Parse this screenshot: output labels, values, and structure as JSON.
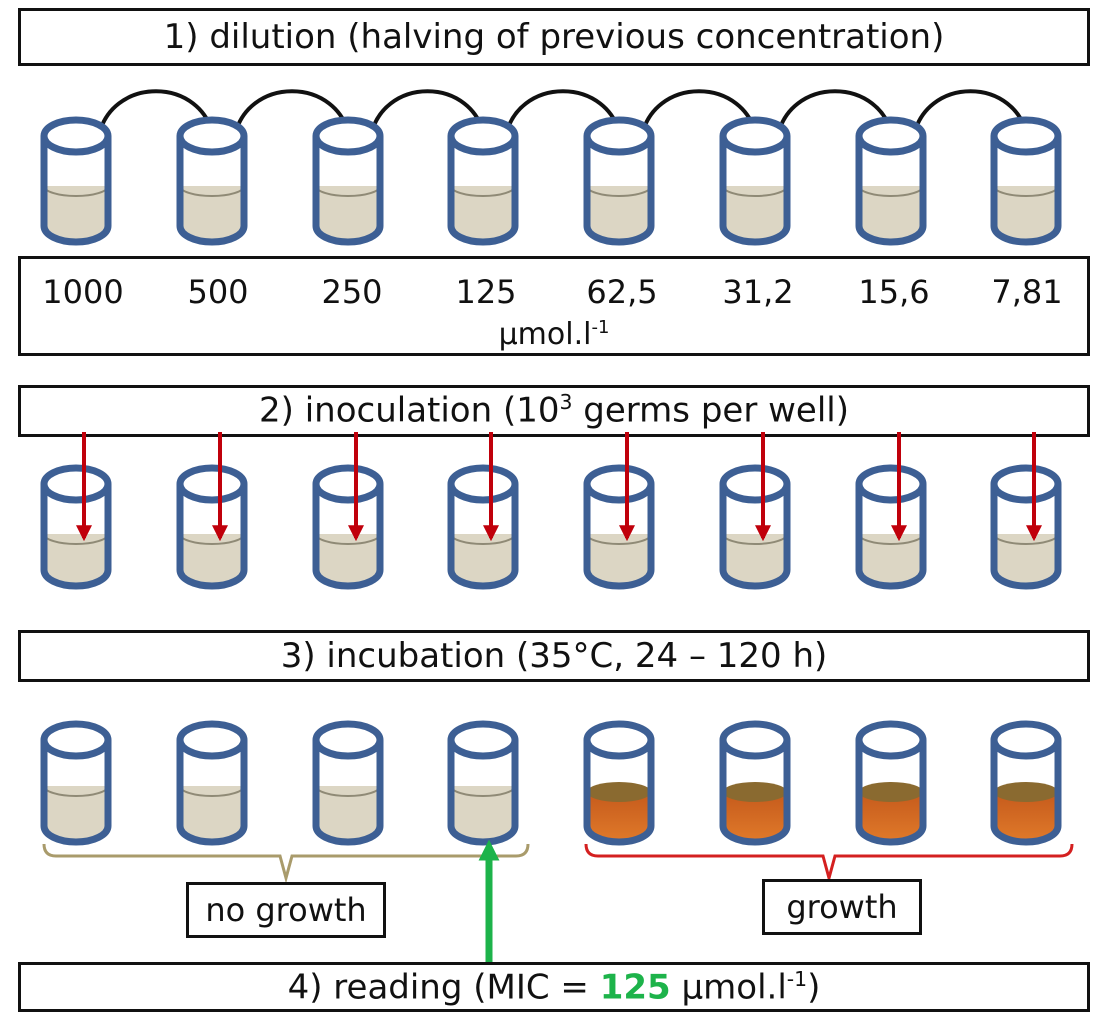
{
  "steps": {
    "step1": "1) dilution (halving of previous concentration)",
    "step2_pre": "2) inoculation (10",
    "step2_sup": "3",
    "step2_post": " germs per well)",
    "step3": "3) incubation (35°C, 24 – 120 h)",
    "step4_pre": "4) reading (MIC = ",
    "step4_value": "125",
    "step4_post": " µmol.l",
    "step4_sup": "-1",
    "step4_end": ")"
  },
  "concentrations": [
    "1000",
    "500",
    "250",
    "125",
    "62,5",
    "31,2",
    "15,6",
    "7,81"
  ],
  "unit": {
    "pre": "µmol.l",
    "sup": "-1"
  },
  "labels": {
    "no_growth": "no growth",
    "growth": "growth"
  },
  "colors": {
    "well_outline": "#3d5f94",
    "liquid_clear": "#dcd6c4",
    "liquid_growth": "#d2691e",
    "liquid_growth_top": "#8a6a30",
    "dilution_arrow": "#111111",
    "inoculation_arrow": "#c0000b",
    "mic_arrow": "#1db34a",
    "no_growth_bracket": "#a99b6b",
    "growth_bracket": "#d42020"
  },
  "reading": {
    "no_growth_count": 4,
    "growth_count": 4,
    "mic_well_index": 3
  }
}
